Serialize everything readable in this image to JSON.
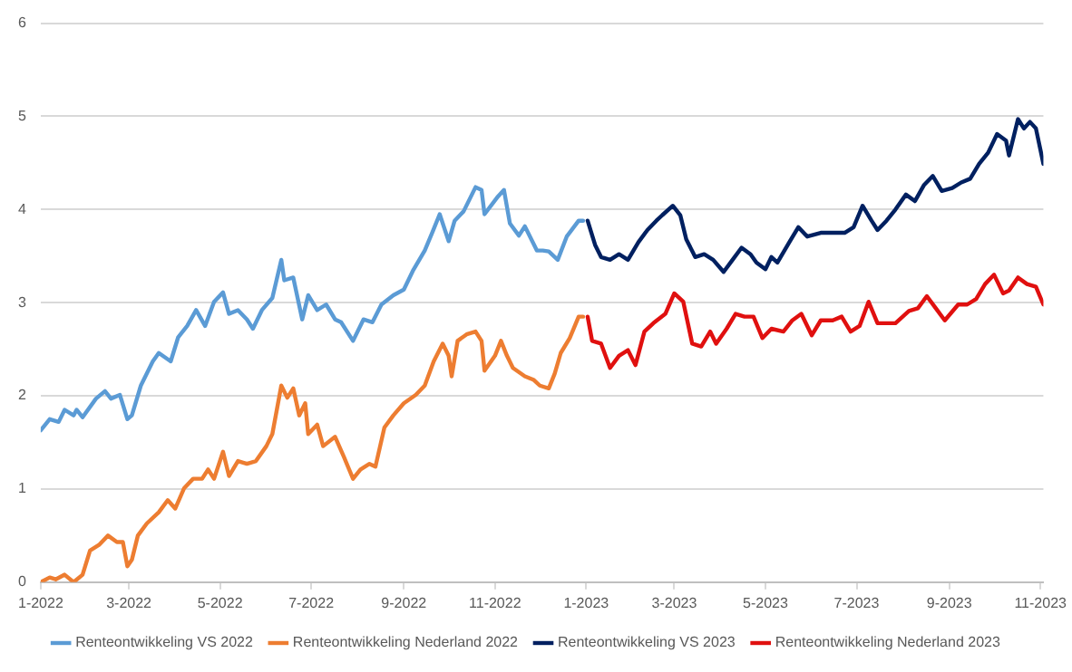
{
  "chart_data": {
    "type": "line",
    "legend": "bottom",
    "grid": "y",
    "xlim": [
      "2022-01-01",
      "2023-11-03"
    ],
    "ylim": [
      0,
      6
    ],
    "yticks": [
      0,
      1,
      2,
      3,
      4,
      5,
      6
    ],
    "xticks": [
      {
        "value": "2022-01-01",
        "label": "1-2022"
      },
      {
        "value": "2022-03-01",
        "label": "3-2022"
      },
      {
        "value": "2022-05-01",
        "label": "5-2022"
      },
      {
        "value": "2022-07-01",
        "label": "7-2022"
      },
      {
        "value": "2022-09-01",
        "label": "9-2022"
      },
      {
        "value": "2022-11-01",
        "label": "11-2022"
      },
      {
        "value": "2023-01-01",
        "label": "1-2023"
      },
      {
        "value": "2023-03-01",
        "label": "3-2023"
      },
      {
        "value": "2023-05-01",
        "label": "5-2023"
      },
      {
        "value": "2023-07-01",
        "label": "7-2023"
      },
      {
        "value": "2023-09-01",
        "label": "9-2023"
      },
      {
        "value": "2023-11-01",
        "label": "11-2023"
      }
    ],
    "series": [
      {
        "name": "Renteontwikkeling VS 2022",
        "color": "#5b9bd5",
        "x": [
          "2022-01-01",
          "2022-01-07",
          "2022-01-13",
          "2022-01-17",
          "2022-01-23",
          "2022-01-25",
          "2022-01-29",
          "2022-02-07",
          "2022-02-13",
          "2022-02-17",
          "2022-02-23",
          "2022-02-28",
          "2022-03-03",
          "2022-03-09",
          "2022-03-17",
          "2022-03-21",
          "2022-03-29",
          "2022-04-03",
          "2022-04-09",
          "2022-04-15",
          "2022-04-21",
          "2022-04-27",
          "2022-05-03",
          "2022-05-07",
          "2022-05-13",
          "2022-05-19",
          "2022-05-23",
          "2022-05-29",
          "2022-06-05",
          "2022-06-11",
          "2022-06-13",
          "2022-06-19",
          "2022-06-25",
          "2022-06-29",
          "2022-07-05",
          "2022-07-11",
          "2022-07-17",
          "2022-07-21",
          "2022-07-29",
          "2022-08-05",
          "2022-08-11",
          "2022-08-17",
          "2022-08-25",
          "2022-09-01",
          "2022-09-07",
          "2022-09-15",
          "2022-09-21",
          "2022-09-25",
          "2022-10-01",
          "2022-10-05",
          "2022-10-11",
          "2022-10-19",
          "2022-10-23",
          "2022-10-25",
          "2022-11-03",
          "2022-11-07",
          "2022-11-11",
          "2022-11-17",
          "2022-11-21",
          "2022-11-29",
          "2022-12-03",
          "2022-12-07",
          "2022-12-13",
          "2022-12-19",
          "2022-12-27",
          "2022-12-30"
        ],
        "values": [
          1.63,
          1.75,
          1.72,
          1.85,
          1.79,
          1.85,
          1.77,
          1.97,
          2.05,
          1.97,
          2.01,
          1.75,
          1.79,
          2.11,
          2.37,
          2.46,
          2.37,
          2.63,
          2.75,
          2.92,
          2.75,
          3.01,
          3.11,
          2.88,
          2.92,
          2.82,
          2.72,
          2.92,
          3.05,
          3.46,
          3.24,
          3.27,
          2.82,
          3.08,
          2.92,
          2.98,
          2.82,
          2.79,
          2.59,
          2.82,
          2.79,
          2.98,
          3.08,
          3.14,
          3.34,
          3.56,
          3.79,
          3.95,
          3.66,
          3.88,
          3.98,
          4.24,
          4.21,
          3.95,
          4.14,
          4.21,
          3.85,
          3.72,
          3.82,
          3.56,
          3.56,
          3.55,
          3.46,
          3.71,
          3.88,
          3.88
        ]
      },
      {
        "name": "Renteontwikkeling Nederland 2022",
        "color": "#ed7d31",
        "x": [
          "2022-01-01",
          "2022-01-07",
          "2022-01-11",
          "2022-01-17",
          "2022-01-23",
          "2022-01-29",
          "2022-02-03",
          "2022-02-09",
          "2022-02-15",
          "2022-02-21",
          "2022-02-25",
          "2022-02-28",
          "2022-03-03",
          "2022-03-07",
          "2022-03-13",
          "2022-03-21",
          "2022-03-27",
          "2022-04-01",
          "2022-04-07",
          "2022-04-13",
          "2022-04-19",
          "2022-04-23",
          "2022-04-27",
          "2022-05-03",
          "2022-05-07",
          "2022-05-13",
          "2022-05-19",
          "2022-05-25",
          "2022-06-01",
          "2022-06-05",
          "2022-06-11",
          "2022-06-15",
          "2022-06-19",
          "2022-06-23",
          "2022-06-27",
          "2022-06-29",
          "2022-07-05",
          "2022-07-09",
          "2022-07-17",
          "2022-07-23",
          "2022-07-29",
          "2022-08-03",
          "2022-08-09",
          "2022-08-13",
          "2022-08-19",
          "2022-08-25",
          "2022-09-01",
          "2022-09-09",
          "2022-09-15",
          "2022-09-21",
          "2022-09-27",
          "2022-10-01",
          "2022-10-03",
          "2022-10-07",
          "2022-10-13",
          "2022-10-19",
          "2022-10-23",
          "2022-10-25",
          "2022-11-01",
          "2022-11-05",
          "2022-11-09",
          "2022-11-13",
          "2022-11-21",
          "2022-11-27",
          "2022-12-01",
          "2022-12-07",
          "2022-12-11",
          "2022-12-15",
          "2022-12-21",
          "2022-12-27",
          "2022-12-30"
        ],
        "values": [
          0.0,
          0.05,
          0.03,
          0.08,
          0.0,
          0.08,
          0.34,
          0.4,
          0.5,
          0.43,
          0.43,
          0.17,
          0.24,
          0.5,
          0.63,
          0.75,
          0.88,
          0.79,
          1.01,
          1.11,
          1.11,
          1.21,
          1.11,
          1.4,
          1.14,
          1.3,
          1.27,
          1.3,
          1.46,
          1.59,
          2.11,
          1.98,
          2.08,
          1.79,
          1.92,
          1.59,
          1.69,
          1.46,
          1.56,
          1.34,
          1.11,
          1.21,
          1.27,
          1.24,
          1.66,
          1.79,
          1.92,
          2.01,
          2.11,
          2.37,
          2.56,
          2.43,
          2.21,
          2.59,
          2.66,
          2.69,
          2.59,
          2.27,
          2.43,
          2.59,
          2.43,
          2.3,
          2.21,
          2.17,
          2.11,
          2.08,
          2.24,
          2.46,
          2.62,
          2.85,
          2.85
        ]
      },
      {
        "name": "Renteontwikkeling VS 2023",
        "color": "#002060",
        "x": [
          "2023-01-02",
          "2023-01-07",
          "2023-01-11",
          "2023-01-17",
          "2023-01-23",
          "2023-01-29",
          "2023-02-05",
          "2023-02-11",
          "2023-02-17",
          "2023-02-21",
          "2023-02-28",
          "2023-03-05",
          "2023-03-09",
          "2023-03-15",
          "2023-03-21",
          "2023-03-27",
          "2023-04-03",
          "2023-04-09",
          "2023-04-15",
          "2023-04-21",
          "2023-04-25",
          "2023-05-01",
          "2023-05-05",
          "2023-05-09",
          "2023-05-17",
          "2023-05-23",
          "2023-05-29",
          "2023-06-07",
          "2023-06-15",
          "2023-06-23",
          "2023-06-29",
          "2023-07-05",
          "2023-07-11",
          "2023-07-15",
          "2023-07-21",
          "2023-07-27",
          "2023-08-03",
          "2023-08-09",
          "2023-08-15",
          "2023-08-21",
          "2023-08-27",
          "2023-09-03",
          "2023-09-09",
          "2023-09-15",
          "2023-09-21",
          "2023-09-27",
          "2023-10-03",
          "2023-10-09",
          "2023-10-11",
          "2023-10-17",
          "2023-10-21",
          "2023-10-25",
          "2023-10-29",
          "2023-11-03"
        ],
        "values": [
          3.88,
          3.62,
          3.49,
          3.46,
          3.52,
          3.46,
          3.65,
          3.78,
          3.88,
          3.94,
          4.04,
          3.94,
          3.68,
          3.49,
          3.52,
          3.46,
          3.33,
          3.46,
          3.59,
          3.52,
          3.43,
          3.36,
          3.49,
          3.43,
          3.65,
          3.81,
          3.71,
          3.75,
          3.75,
          3.75,
          3.81,
          4.04,
          3.88,
          3.78,
          3.88,
          4.0,
          4.16,
          4.09,
          4.26,
          4.36,
          4.2,
          4.23,
          4.29,
          4.33,
          4.49,
          4.61,
          4.81,
          4.74,
          4.58,
          4.97,
          4.87,
          4.94,
          4.87,
          4.49
        ]
      },
      {
        "name": "Renteontwikkeling Nederland 2023",
        "color": "#e0100f",
        "x": [
          "2023-01-02",
          "2023-01-05",
          "2023-01-11",
          "2023-01-17",
          "2023-01-23",
          "2023-01-29",
          "2023-02-03",
          "2023-02-09",
          "2023-02-15",
          "2023-02-23",
          "2023-03-01",
          "2023-03-07",
          "2023-03-13",
          "2023-03-19",
          "2023-03-25",
          "2023-03-29",
          "2023-04-05",
          "2023-04-11",
          "2023-04-17",
          "2023-04-23",
          "2023-04-29",
          "2023-05-05",
          "2023-05-13",
          "2023-05-19",
          "2023-05-25",
          "2023-06-01",
          "2023-06-07",
          "2023-06-15",
          "2023-06-21",
          "2023-06-27",
          "2023-07-03",
          "2023-07-09",
          "2023-07-15",
          "2023-07-21",
          "2023-07-27",
          "2023-08-05",
          "2023-08-11",
          "2023-08-17",
          "2023-08-23",
          "2023-08-29",
          "2023-09-07",
          "2023-09-13",
          "2023-09-19",
          "2023-09-25",
          "2023-10-01",
          "2023-10-07",
          "2023-10-11",
          "2023-10-17",
          "2023-10-23",
          "2023-10-29",
          "2023-11-03"
        ],
        "values": [
          2.85,
          2.59,
          2.56,
          2.3,
          2.43,
          2.49,
          2.33,
          2.69,
          2.78,
          2.88,
          3.1,
          3.01,
          2.56,
          2.53,
          2.69,
          2.56,
          2.72,
          2.88,
          2.85,
          2.85,
          2.62,
          2.72,
          2.69,
          2.81,
          2.88,
          2.65,
          2.81,
          2.81,
          2.85,
          2.69,
          2.75,
          3.01,
          2.78,
          2.78,
          2.78,
          2.91,
          2.94,
          3.07,
          2.94,
          2.81,
          2.98,
          2.98,
          3.04,
          3.2,
          3.3,
          3.1,
          3.13,
          3.27,
          3.2,
          3.17,
          2.98
        ]
      }
    ]
  }
}
